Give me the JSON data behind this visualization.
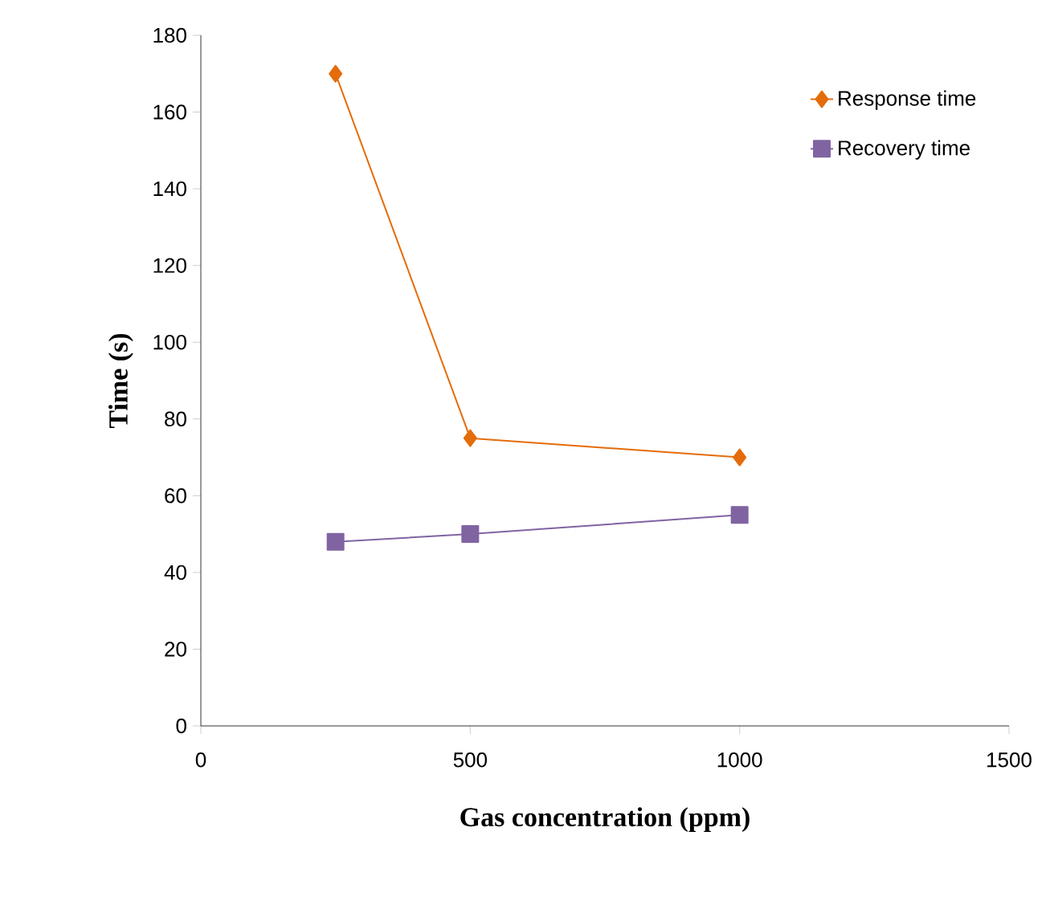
{
  "chart_data": {
    "type": "line",
    "xlabel": "Gas concentration (ppm)",
    "ylabel": "Time (s)",
    "xlim": [
      0,
      1500
    ],
    "xticks": [
      0,
      500,
      1000,
      1500
    ],
    "ylim": [
      0,
      180
    ],
    "yticks": [
      0,
      20,
      40,
      60,
      80,
      100,
      120,
      140,
      160,
      180
    ],
    "x": [
      250,
      500,
      1000
    ],
    "grid": false,
    "legend": "top right",
    "series": [
      {
        "name": "Response time",
        "color": "#e46c0a",
        "marker": "diamond",
        "values": [
          170,
          75,
          70
        ]
      },
      {
        "name": "Recovery time",
        "color": "#8064a2",
        "marker": "square",
        "values": [
          48,
          50,
          55
        ]
      }
    ]
  }
}
